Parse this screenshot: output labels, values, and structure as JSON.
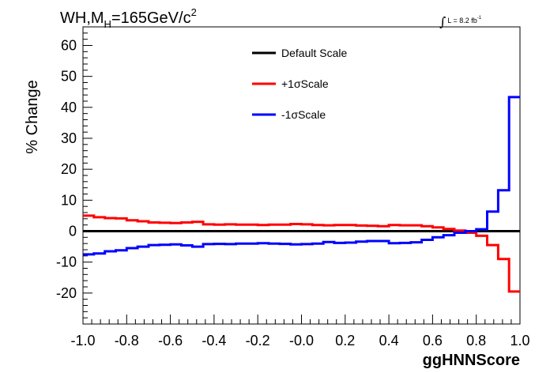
{
  "header": {
    "process": "WH,M",
    "subscript": "H",
    "mass": "=165GeV/c",
    "superscript": "2",
    "lumi_label": "L = 8.2 fb",
    "lumi_exp": "-1"
  },
  "chart_data": {
    "type": "line",
    "xlabel": "ggHNNScore",
    "ylabel": "% Change",
    "xlim": [
      -1.0,
      1.0
    ],
    "ylim": [
      -30,
      66
    ],
    "x_ticks": [
      "-1.0",
      "-0.8",
      "-0.6",
      "-0.4",
      "-0.2",
      "-0.0",
      "0.2",
      "0.4",
      "0.6",
      "0.8",
      "1.0"
    ],
    "y_ticks": [
      "-20",
      "-10",
      "0",
      "10",
      "20",
      "30",
      "40",
      "50",
      "60"
    ],
    "bin_edges": [
      -1.0,
      -0.95,
      -0.9,
      -0.85,
      -0.8,
      -0.75,
      -0.7,
      -0.65,
      -0.6,
      -0.55,
      -0.5,
      -0.45,
      -0.4,
      -0.35,
      -0.3,
      -0.25,
      -0.2,
      -0.15,
      -0.1,
      -0.05,
      0.0,
      0.05,
      0.1,
      0.15,
      0.2,
      0.25,
      0.3,
      0.35,
      0.4,
      0.45,
      0.5,
      0.55,
      0.6,
      0.65,
      0.7,
      0.75,
      0.8,
      0.85,
      0.9,
      0.95,
      1.0
    ],
    "legend_position": "top-center",
    "series": [
      {
        "name": "Default Scale",
        "color": "#000000",
        "values": [
          0,
          0,
          0,
          0,
          0,
          0,
          0,
          0,
          0,
          0,
          0,
          0,
          0,
          0,
          0,
          0,
          0,
          0,
          0,
          0,
          0,
          0,
          0,
          0,
          0,
          0,
          0,
          0,
          0,
          0,
          0,
          0,
          0,
          0,
          0,
          0,
          0,
          0,
          0,
          0
        ]
      },
      {
        "name": "+1σScale",
        "color": "#ff0000",
        "values": [
          5.0,
          4.5,
          4.2,
          4.1,
          3.5,
          3.2,
          2.8,
          2.7,
          2.6,
          2.8,
          3.0,
          2.2,
          2.1,
          2.2,
          2.1,
          2.1,
          2.0,
          2.1,
          2.1,
          2.3,
          2.2,
          2.0,
          1.9,
          2.0,
          2.0,
          1.8,
          1.7,
          1.6,
          2.0,
          1.9,
          1.9,
          1.6,
          1.2,
          0.7,
          0.2,
          -0.5,
          -1.5,
          -4.5,
          -9.0,
          -19.5
        ]
      },
      {
        "name": "-1σScale",
        "color": "#0000ff",
        "values": [
          -7.5,
          -7.2,
          -6.5,
          -6.2,
          -5.5,
          -5.0,
          -4.5,
          -4.4,
          -4.3,
          -4.6,
          -5.0,
          -4.2,
          -4.1,
          -4.2,
          -4.0,
          -4.0,
          -3.9,
          -4.0,
          -4.1,
          -4.3,
          -4.2,
          -4.0,
          -3.5,
          -3.8,
          -3.7,
          -3.4,
          -3.2,
          -3.2,
          -3.9,
          -3.8,
          -3.6,
          -2.8,
          -2.0,
          -1.3,
          -0.5,
          0.0,
          0.6,
          6.3,
          13.2,
          43.3
        ]
      }
    ]
  }
}
